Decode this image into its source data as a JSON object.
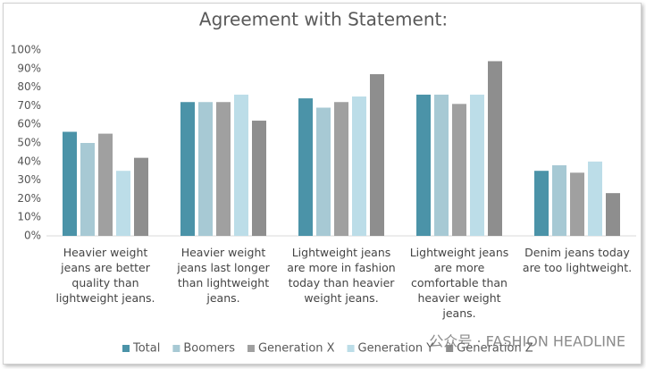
{
  "chart_data": {
    "type": "bar",
    "title": "Agreement with Statement:",
    "categories": [
      "Heavier weight jeans are better quality than lightweight jeans.",
      "Heavier weight jeans last longer than lightweight jeans.",
      "Lightweight jeans are more in fashion today than heavier weight jeans.",
      "Lightweight jeans are more comfortable than heavier weight jeans.",
      "Denim jeans today are too lightweight."
    ],
    "series": [
      {
        "name": "Total",
        "color": "#4b93a8",
        "values": [
          56,
          72,
          74,
          76,
          35
        ]
      },
      {
        "name": "Boomers",
        "color": "#a7c9d4",
        "values": [
          50,
          72,
          69,
          76,
          38
        ]
      },
      {
        "name": "Generation X",
        "color": "#a0a0a0",
        "values": [
          55,
          72,
          72,
          71,
          34
        ]
      },
      {
        "name": "Generation Y",
        "color": "#bcdde8",
        "values": [
          35,
          76,
          75,
          76,
          40
        ]
      },
      {
        "name": "Generation Z",
        "color": "#8e8e8e",
        "values": [
          42,
          62,
          87,
          94,
          23
        ]
      }
    ],
    "ylim": [
      0,
      100
    ],
    "yticks": [
      {
        "value": 0,
        "label": "0%"
      },
      {
        "value": 10,
        "label": "10%"
      },
      {
        "value": 20,
        "label": "20%"
      },
      {
        "value": 30,
        "label": "30%"
      },
      {
        "value": 40,
        "label": "40%"
      },
      {
        "value": 50,
        "label": "50%"
      },
      {
        "value": 60,
        "label": "60%"
      },
      {
        "value": 70,
        "label": "70%"
      },
      {
        "value": 80,
        "label": "80%"
      },
      {
        "value": 90,
        "label": "90%"
      },
      {
        "value": 100,
        "label": "100%"
      }
    ],
    "grid": false,
    "legend": "bottom",
    "watermark": "公众号 · FASHION HEADLINE"
  }
}
